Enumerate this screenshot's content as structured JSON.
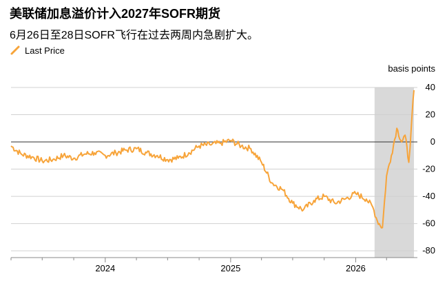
{
  "header": {
    "title": "美联储加息溢价计入2027年SOFR期货",
    "subtitle": "6月26日至28日SOFR飞行在过去两周内急剧扩大。"
  },
  "legend": {
    "items": [
      {
        "label": "Last Price",
        "color": "#f7a43a"
      }
    ]
  },
  "colors": {
    "series": "#f7a43a",
    "highlight": "#d9d9d9",
    "zero_line": "#444444",
    "grid": "#d0d0d0"
  },
  "chart_data": {
    "type": "line",
    "title": "美联储加息溢价计入2027年SOFR期货",
    "subtitle": "6月26日至28日SOFR飞行在过去两周内急剧扩大。",
    "y_unit_label": "basis points",
    "ylim": [
      -85,
      40
    ],
    "yticks": [
      40,
      20,
      0,
      -20,
      -40,
      -60,
      -80
    ],
    "xlim": [
      "2023-04-01",
      "2026-06-30"
    ],
    "xticks": [
      {
        "label": "2024",
        "date": "2024-01-01"
      },
      {
        "label": "2025",
        "date": "2025-01-01"
      },
      {
        "label": "2026",
        "date": "2026-01-01"
      }
    ],
    "highlight_range": [
      "2026-02-25",
      "2026-06-20"
    ],
    "grid": "horizontal",
    "legend_position": "top-left",
    "series": [
      {
        "name": "Last Price",
        "points": [
          [
            "2023-04-01",
            -3
          ],
          [
            "2023-05-01",
            -9
          ],
          [
            "2023-06-01",
            -11
          ],
          [
            "2023-07-01",
            -14
          ],
          [
            "2023-08-01",
            -13
          ],
          [
            "2023-09-01",
            -10
          ],
          [
            "2023-10-01",
            -12
          ],
          [
            "2023-11-01",
            -9
          ],
          [
            "2023-12-01",
            -8
          ],
          [
            "2024-01-01",
            -10
          ],
          [
            "2024-02-01",
            -8
          ],
          [
            "2024-03-01",
            -6
          ],
          [
            "2024-04-01",
            -5
          ],
          [
            "2024-05-01",
            -8
          ],
          [
            "2024-06-01",
            -10
          ],
          [
            "2024-07-01",
            -13
          ],
          [
            "2024-08-01",
            -12
          ],
          [
            "2024-09-01",
            -8
          ],
          [
            "2024-10-01",
            -3
          ],
          [
            "2024-11-01",
            -2
          ],
          [
            "2024-12-01",
            -1
          ],
          [
            "2025-01-01",
            1
          ],
          [
            "2025-02-01",
            -3
          ],
          [
            "2025-03-01",
            -5
          ],
          [
            "2025-04-01",
            -15
          ],
          [
            "2025-05-01",
            -30
          ],
          [
            "2025-06-01",
            -35
          ],
          [
            "2025-07-01",
            -45
          ],
          [
            "2025-08-01",
            -50
          ],
          [
            "2025-09-01",
            -43
          ],
          [
            "2025-10-01",
            -40
          ],
          [
            "2025-11-01",
            -45
          ],
          [
            "2025-12-01",
            -42
          ],
          [
            "2026-01-01",
            -38
          ],
          [
            "2026-02-01",
            -42
          ],
          [
            "2026-02-20",
            -48
          ],
          [
            "2026-03-05",
            -58
          ],
          [
            "2026-03-20",
            -63
          ],
          [
            "2026-04-01",
            -25
          ],
          [
            "2026-04-15",
            -10
          ],
          [
            "2026-05-01",
            10
          ],
          [
            "2026-05-15",
            0
          ],
          [
            "2026-05-25",
            5
          ],
          [
            "2026-06-05",
            -15
          ],
          [
            "2026-06-12",
            10
          ],
          [
            "2026-06-20",
            38
          ]
        ]
      }
    ]
  }
}
